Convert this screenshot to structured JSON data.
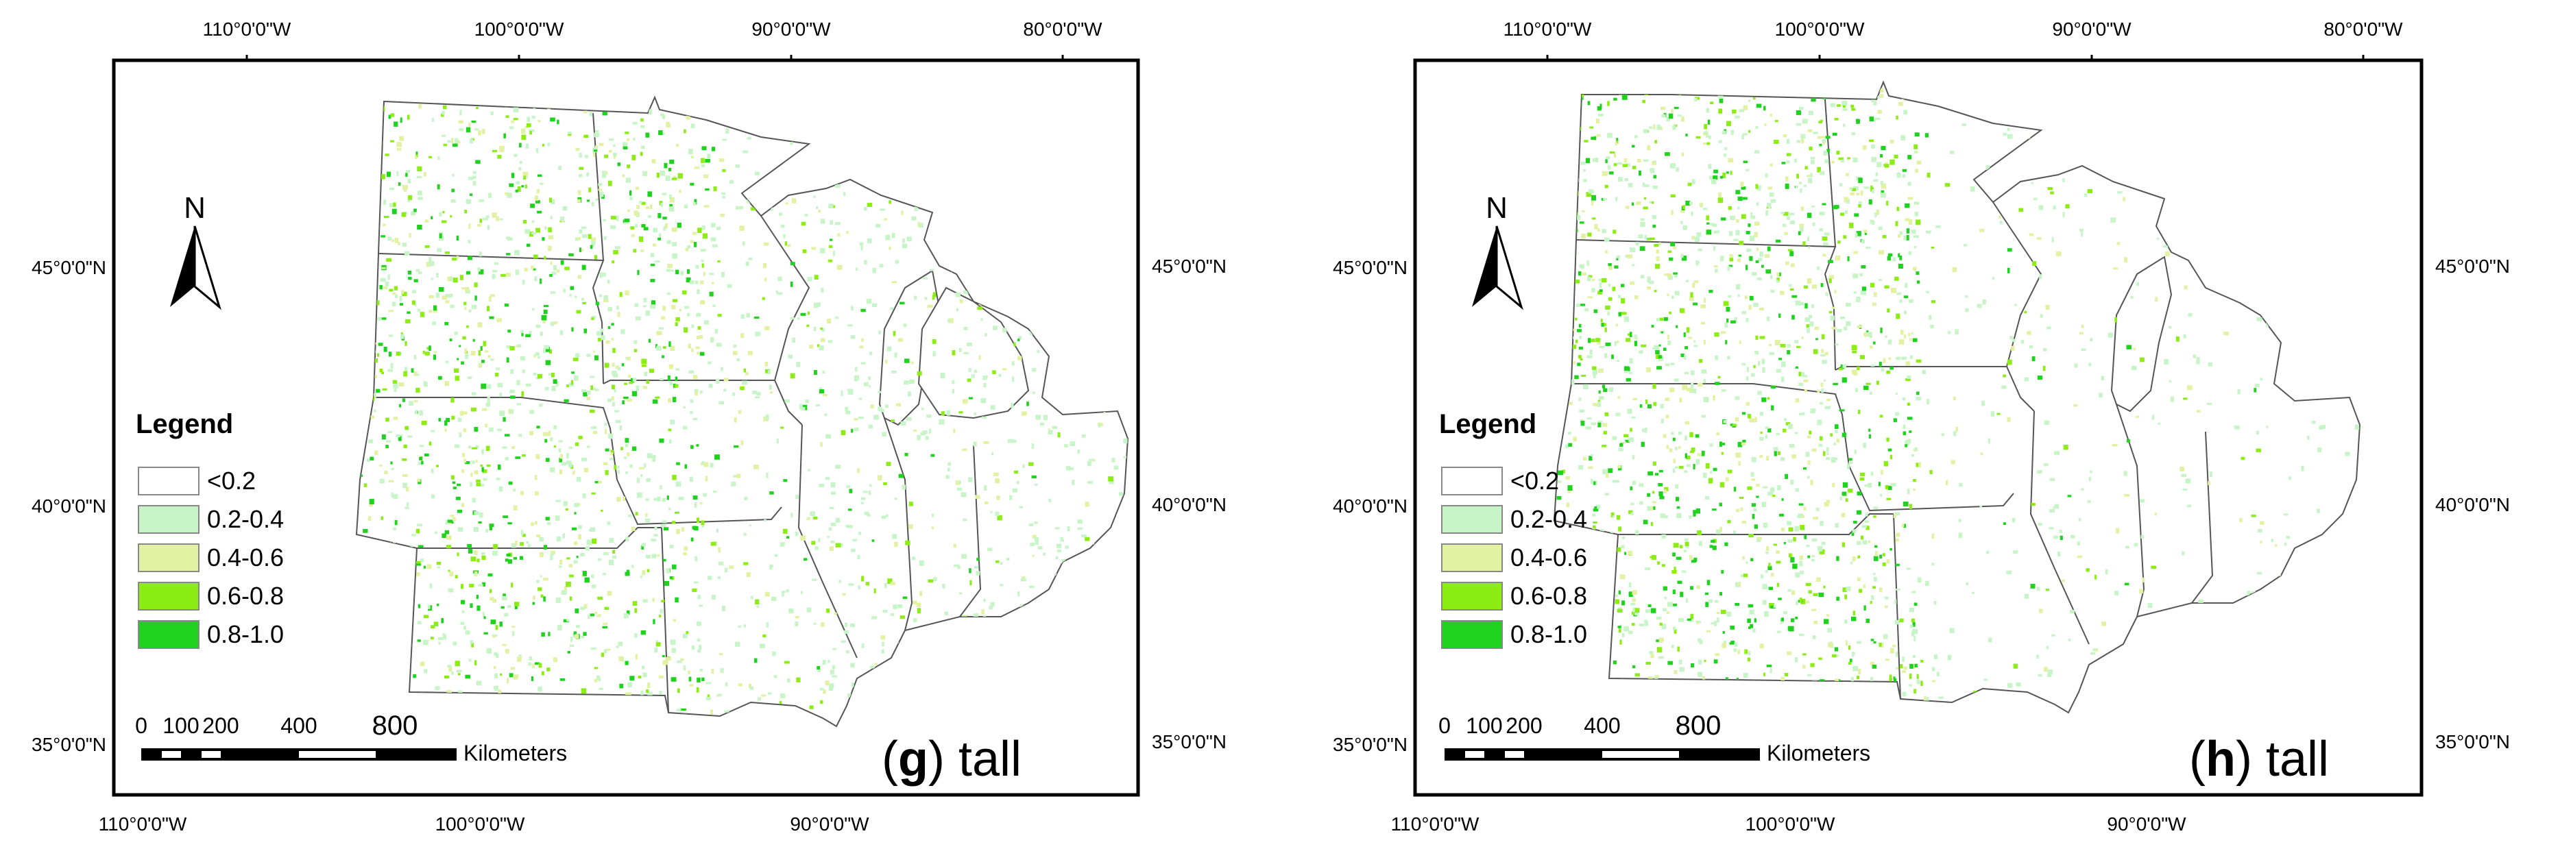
{
  "panels": [
    {
      "id": "g",
      "letter": "g",
      "word": "tall",
      "paren_open": "(",
      "paren_close": ")",
      "top_lon_labels": [
        "110°0'0\"W",
        "100°0'0\"W",
        "90°0'0\"W",
        "80°0'0\"W"
      ],
      "bottom_lon_labels": [
        "110°0'0\"W",
        "100°0'0\"W",
        "90°0'0\"W"
      ],
      "left_lat_labels": [
        "45°0'0\"N",
        "40°0'0\"N",
        "35°0'0\"N"
      ],
      "right_lat_labels": [
        "45°0'0\"N",
        "40°0'0\"N",
        "35°0'0\"N"
      ],
      "density": {
        "west": 0.7,
        "east": 0.35
      }
    },
    {
      "id": "h",
      "letter": "h",
      "word": "tall",
      "paren_open": "(",
      "paren_close": ")",
      "top_lon_labels": [
        "110°0'0\"W",
        "100°0'0\"W",
        "90°0'0\"W",
        "80°0'0\"W"
      ],
      "bottom_lon_labels": [
        "110°0'0\"W",
        "100°0'0\"W",
        "90°0'0\"W"
      ],
      "left_lat_labels": [
        "45°0'0\"N",
        "40°0'0\"N",
        "35°0'0\"N"
      ],
      "right_lat_labels": [
        "45°0'0\"N",
        "40°0'0\"N",
        "35°0'0\"N"
      ],
      "density": {
        "west": 0.8,
        "east": 0.15
      }
    }
  ],
  "legend": {
    "title": "Legend",
    "classes": [
      {
        "label": "<0.2",
        "color": "#ffffff"
      },
      {
        "label": "0.2-0.4",
        "color": "#c8f5c8"
      },
      {
        "label": "0.4-0.6",
        "color": "#e2f2a2"
      },
      {
        "label": "0.6-0.8",
        "color": "#8ced14"
      },
      {
        "label": "0.8-1.0",
        "color": "#1ed21e"
      }
    ]
  },
  "north_arrow": {
    "label": "N"
  },
  "scale_bar": {
    "ticks": [
      "0",
      "100",
      "200",
      "400"
    ],
    "end": "800",
    "units": "Kilometers"
  }
}
